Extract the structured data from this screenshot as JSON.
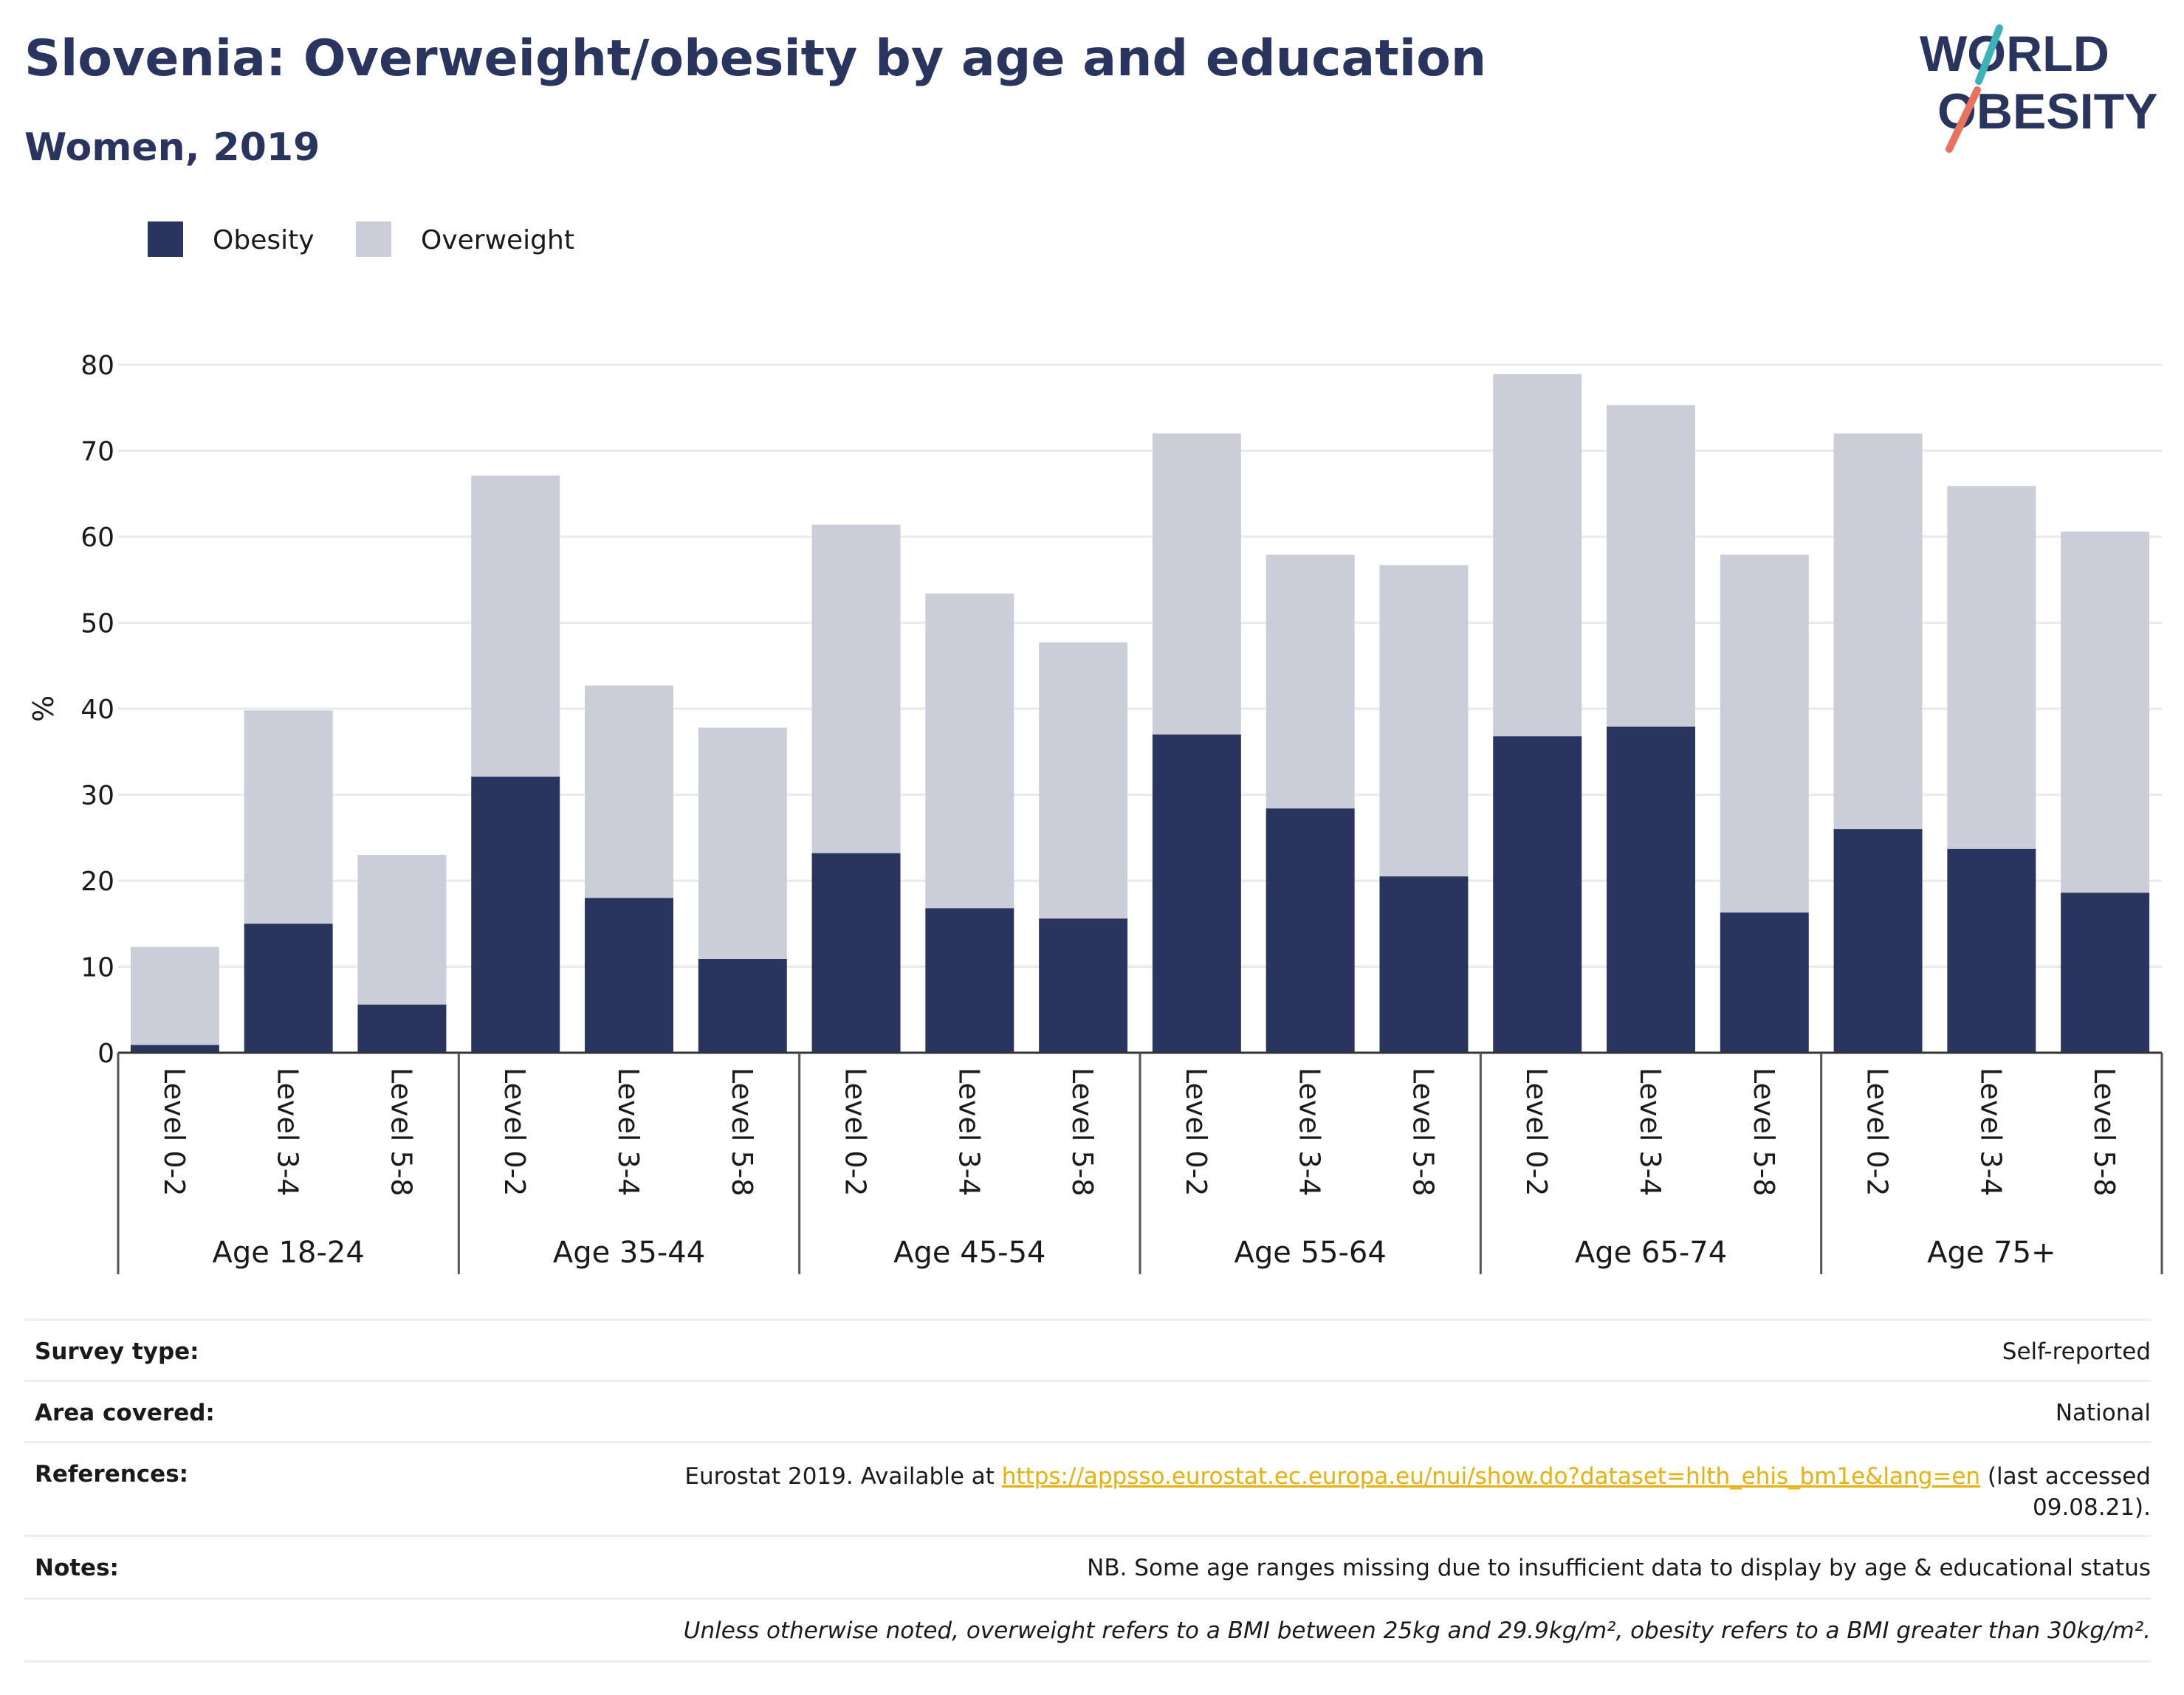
{
  "header": {
    "title": "Slovenia: Overweight/obesity by age and education",
    "subtitle": "Women, 2019",
    "logo_line1": "WORLD",
    "logo_line2": "OBESITY"
  },
  "colors": {
    "obesity": "#2a355f",
    "overweight": "#cbcdd9",
    "text": "#2a355f",
    "grid": "#e9eaee",
    "link": "#e8b00c",
    "logo_teal": "#3bb3b6",
    "logo_coral": "#e8735d"
  },
  "chart_data": {
    "type": "bar",
    "stacked": true,
    "legend_position": "top-left",
    "grid": true,
    "ylabel": "%",
    "ylim": [
      0,
      80
    ],
    "yticks": [
      0,
      10,
      20,
      30,
      40,
      50,
      60,
      70,
      80
    ],
    "groups": [
      "Age 18-24",
      "Age 35-44",
      "Age 45-54",
      "Age 55-64",
      "Age 65-74",
      "Age 75+"
    ],
    "subcategories": [
      "Level 0-2",
      "Level 3-4",
      "Level 5-8"
    ],
    "categories": [
      "Level 0-2",
      "Level 3-4",
      "Level 5-8",
      "Level 0-2",
      "Level 3-4",
      "Level 5-8",
      "Level 0-2",
      "Level 3-4",
      "Level 5-8",
      "Level 0-2",
      "Level 3-4",
      "Level 5-8",
      "Level 0-2",
      "Level 3-4",
      "Level 5-8",
      "Level 0-2",
      "Level 3-4",
      "Level 5-8"
    ],
    "series": [
      {
        "name": "Obesity",
        "values": [
          0.9,
          15,
          5.6,
          32.1,
          18,
          10.9,
          23.2,
          16.8,
          15.6,
          37,
          28.4,
          20.5,
          36.8,
          37.9,
          16.3,
          26,
          23.7,
          18.6
        ]
      },
      {
        "name": "Overweight",
        "values": [
          11.4,
          24.8,
          17.4,
          35,
          24.7,
          26.9,
          38.2,
          36.6,
          32.1,
          35,
          29.5,
          36.2,
          42.1,
          37.4,
          41.6,
          46,
          42.2,
          42
        ]
      }
    ]
  },
  "info": {
    "survey_type_label": "Survey type:",
    "survey_type_value": "Self-reported",
    "area_label": "Area covered:",
    "area_value": "National",
    "references_label": "References:",
    "references_prefix": "Eurostat 2019. Available at ",
    "references_link": "https://appsso.eurostat.ec.europa.eu/nui/show.do?dataset=hlth_ehis_bm1e&lang=en",
    "references_suffix": " (last accessed",
    "references_line2": "09.08.21).",
    "notes_label": "Notes:",
    "notes_value": "NB. Some age ranges missing due to insufficient data to display by age & educational status",
    "footnote": "Unless otherwise noted, overweight refers to a BMI between 25kg and 29.9kg/m², obesity refers to a BMI greater than 30kg/m²."
  }
}
